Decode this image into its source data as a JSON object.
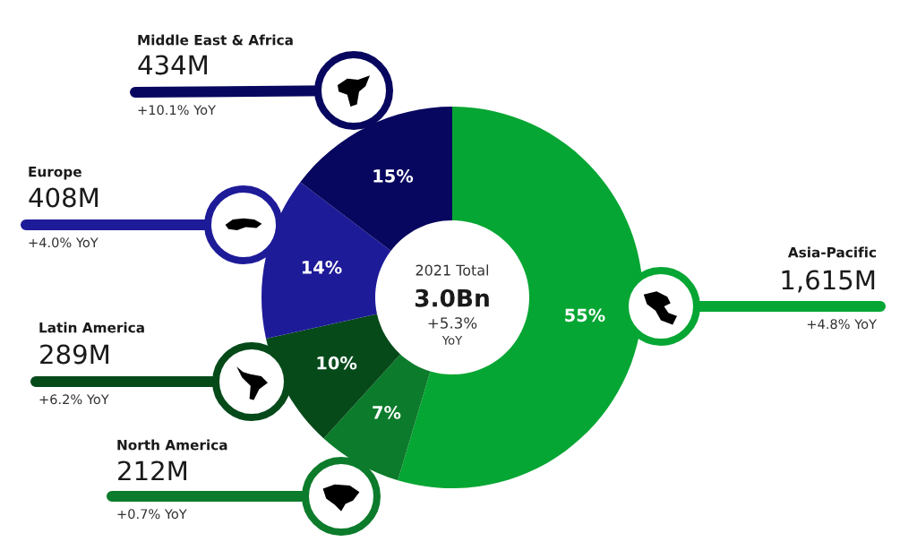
{
  "chart_data": {
    "type": "donut",
    "categories": [
      "Asia-Pacific",
      "North America",
      "Latin America",
      "Europe",
      "Middle East & Africa"
    ],
    "values": [
      1615,
      212,
      289,
      408,
      434
    ],
    "colors": [
      "#05a633",
      "#0c7b2b",
      "#064a1a",
      "#1e1b99",
      "#08075f"
    ],
    "value_labels": [
      "1,615M",
      "212M",
      "289M",
      "408M",
      "434M"
    ],
    "annotations": [
      "55%",
      "7%",
      "10%",
      "14%",
      "15%",
      "+4.8% YoY",
      "+0.7% YoY",
      "+6.2% YoY",
      "+4.0% YoY",
      "+10.1% YoY",
      "2021 Total",
      "3.0Bn",
      "+5.3%",
      "YoY"
    ]
  }
}
